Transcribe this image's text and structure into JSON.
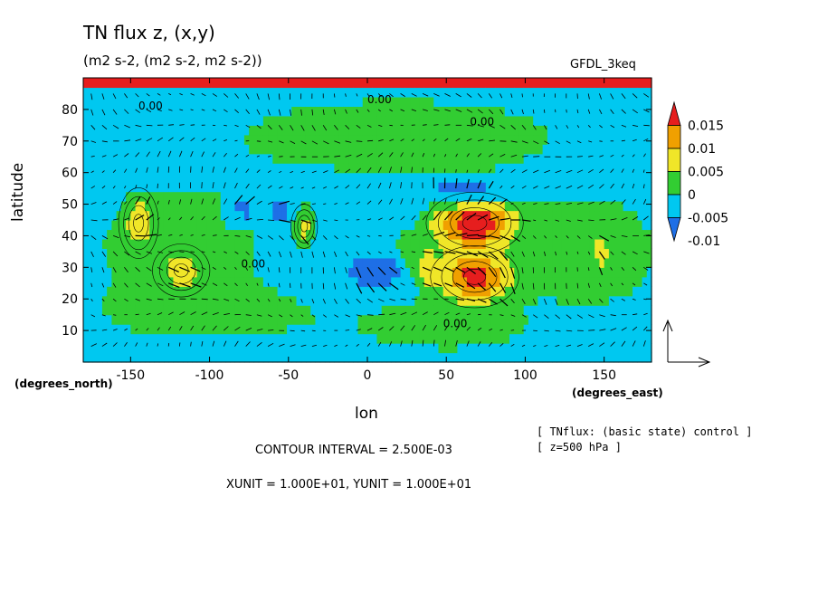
{
  "chart_data": {
    "type": "heatmap",
    "title": "TN flux z, (x,y)",
    "subtitle": "(m2 s-2, (m2 s-2, m2 s-2))",
    "model": "GFDL_3keq",
    "xlabel": "lon",
    "ylabel": "latitude",
    "x_unit_label": "(degrees_east)",
    "y_unit_label": "(degrees_north)",
    "xlim": [
      -180,
      180
    ],
    "ylim": [
      0,
      90
    ],
    "x_ticks": [
      -150,
      -100,
      -50,
      0,
      50,
      100,
      150
    ],
    "y_ticks": [
      10,
      20,
      30,
      40,
      50,
      60,
      70,
      80
    ],
    "x_tick_labels": [
      "-150",
      "-100",
      "-50",
      "0",
      "50",
      "100",
      "150"
    ],
    "y_tick_labels": [
      "10",
      "20",
      "30",
      "40",
      "50",
      "60",
      "70",
      "80"
    ],
    "colorbar": {
      "levels": [
        -0.01,
        -0.005,
        0,
        0.005,
        0.01,
        0.015
      ],
      "labels": [
        "-0.01",
        "-0.005",
        "0",
        "0.005",
        "0.01",
        "0.015"
      ],
      "colors": [
        "#1e6fe6",
        "#00c8f0",
        "#32cd32",
        "#f0e628",
        "#f0a000",
        "#e61e1e"
      ]
    },
    "contour_labels": [
      "0.00",
      "0.00",
      "0.00",
      "0.00",
      "0.00"
    ],
    "footer": {
      "contour_interval": "CONTOUR INTERVAL = 2.500E-03",
      "units": "XUNIT = 1.000E+01, YUNIT = 1.000E+01",
      "note1": "[ TNflux: (basic state) control ]",
      "note2": "[ z=500 hPa ]"
    }
  }
}
